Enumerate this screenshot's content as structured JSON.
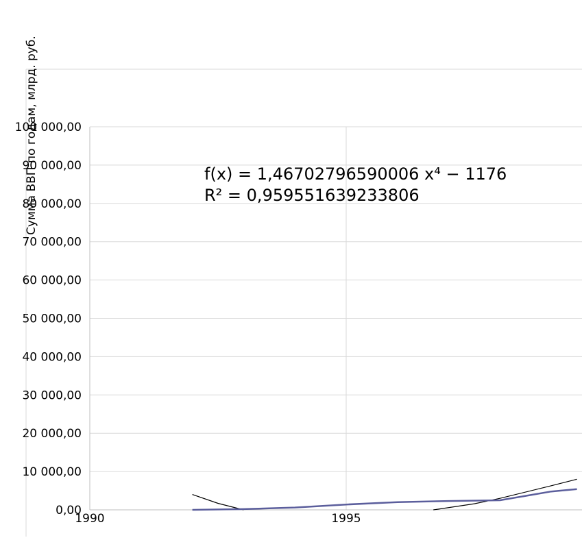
{
  "chart_data": {
    "type": "line",
    "title": "",
    "ylabel": "Сумма ВВП по годам, млрд. руб.",
    "xlabel": "",
    "xlim": [
      1990,
      1999.5
    ],
    "ylim": [
      0,
      100000
    ],
    "x_ticks": [
      {
        "value": 1990,
        "label": "1990"
      },
      {
        "value": 1995,
        "label": "1995"
      }
    ],
    "y_ticks": [
      {
        "value": 0,
        "label": "0,00"
      },
      {
        "value": 10000,
        "label": "10 000,00"
      },
      {
        "value": 20000,
        "label": "20 000,00"
      },
      {
        "value": 30000,
        "label": "30 000,00"
      },
      {
        "value": 40000,
        "label": "40 000,00"
      },
      {
        "value": 50000,
        "label": "50 000,00"
      },
      {
        "value": 60000,
        "label": "60 000,00"
      },
      {
        "value": 70000,
        "label": "70 000,00"
      },
      {
        "value": 80000,
        "label": "80 000,00"
      },
      {
        "value": 90000,
        "label": "90 000,00"
      },
      {
        "value": 100000,
        "label": "100 000,00"
      }
    ],
    "grid": true,
    "legend": "none",
    "series": [
      {
        "type": "line",
        "color": "#5b5e9c",
        "points": [
          {
            "x": 1992,
            "y": 0
          },
          {
            "x": 1993,
            "y": 200
          },
          {
            "x": 1994,
            "y": 600
          },
          {
            "x": 1995,
            "y": 1400
          },
          {
            "x": 1996,
            "y": 2000
          },
          {
            "x": 1997,
            "y": 2300
          },
          {
            "x": 1998,
            "y": 2500
          },
          {
            "x": 1999,
            "y": 4800
          },
          {
            "x": 1999.5,
            "y": 5400
          }
        ]
      }
    ],
    "trendlines": [
      {
        "type": "polynomial",
        "color": "#000000",
        "points": [
          {
            "x": 1992,
            "y": 4000
          },
          {
            "x": 1992.5,
            "y": 1700
          },
          {
            "x": 1993,
            "y": 0
          }
        ]
      },
      {
        "type": "polynomial",
        "color": "#000000",
        "points": [
          {
            "x": 1996.7,
            "y": 0
          },
          {
            "x": 1997.5,
            "y": 1600
          },
          {
            "x": 1998,
            "y": 3000
          },
          {
            "x": 1999,
            "y": 6300
          },
          {
            "x": 1999.5,
            "y": 8000
          }
        ]
      }
    ],
    "annotations": [
      "f(x) = 1,46702796590006 x⁴ − 1176",
      "R² = 0,959551639233806"
    ]
  }
}
